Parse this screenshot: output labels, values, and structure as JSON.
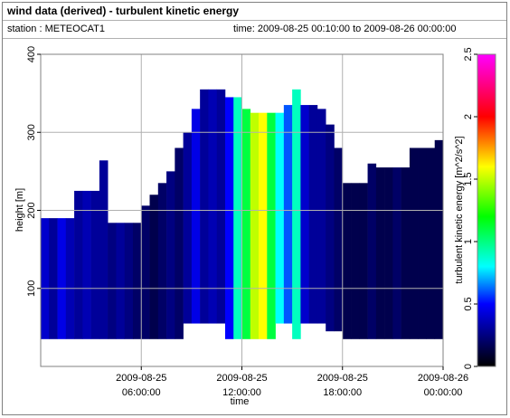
{
  "chart_data": {
    "type": "heatmap",
    "title": "wind data (derived) - turbulent kinetic energy",
    "station": "station : METEOCAT1",
    "time_range": "time: 2009-08-25 00:10:00 to 2009-08-26 00:00:00",
    "xlabel": "time",
    "ylabel": "height [m]",
    "colorbar_label": "turbulent kinetic energy [m^2/s^2]",
    "x": [
      0,
      0.5,
      1,
      1.5,
      2,
      2.5,
      3,
      3.5,
      4,
      4.5,
      5,
      5.5,
      6,
      6.5,
      7,
      7.5,
      8,
      8.5,
      9,
      9.5,
      10,
      10.5,
      11,
      11.5,
      12,
      12.5,
      13,
      13.5,
      14,
      14.5,
      15,
      15.5,
      16,
      16.5,
      17,
      17.5,
      18,
      18.5,
      19,
      19.5,
      20,
      20.5,
      21,
      21.5,
      22,
      22.5,
      23,
      23.5
    ],
    "bottoms": [
      35,
      35,
      35,
      35,
      35,
      35,
      35,
      35,
      35,
      35,
      35,
      35,
      35,
      35,
      35,
      35,
      35,
      55,
      55,
      55,
      55,
      55,
      35,
      35,
      35,
      35,
      35,
      35,
      55,
      55,
      35,
      55,
      55,
      55,
      45,
      45,
      35,
      35,
      35,
      35,
      35,
      35,
      35,
      35,
      35,
      35,
      35,
      35
    ],
    "tops": [
      190,
      190,
      190,
      190,
      225,
      225,
      225,
      264,
      184,
      184,
      184,
      184,
      206,
      220,
      235,
      250,
      280,
      300,
      330,
      355,
      355,
      355,
      345,
      345,
      330,
      325,
      325,
      325,
      325,
      335,
      355,
      335,
      335,
      330,
      310,
      280,
      235,
      235,
      235,
      260,
      255,
      255,
      255,
      255,
      280,
      280,
      280,
      290
    ],
    "values": [
      0.4,
      0.3,
      0.45,
      0.35,
      0.3,
      0.35,
      0.3,
      0.3,
      0.25,
      0.3,
      0.25,
      0.2,
      0.2,
      0.15,
      0.2,
      0.25,
      0.2,
      0.3,
      0.45,
      0.3,
      0.35,
      0.3,
      0.5,
      0.9,
      1.1,
      1.5,
      1.6,
      1.1,
      0.8,
      0.6,
      0.9,
      0.4,
      0.3,
      0.3,
      0.25,
      0.2,
      0.15,
      0.15,
      0.15,
      0.2,
      0.15,
      0.15,
      0.2,
      0.15,
      0.15,
      0.15,
      0.15,
      0.15
    ],
    "xlim": [
      0,
      24
    ],
    "xticks": [
      {
        "value": 6,
        "label": "2009-08-25 06:00:00"
      },
      {
        "value": 12,
        "label": "2009-08-25 12:00:00"
      },
      {
        "value": 18,
        "label": "2009-08-25 18:00:00"
      },
      {
        "value": 24,
        "label": "2009-08-26 00:00:00"
      }
    ],
    "ylim": [
      0,
      400
    ],
    "yticks": [
      100,
      200,
      300,
      400
    ],
    "clim": [
      0,
      2.5
    ],
    "cticks": [
      0,
      0.5,
      1,
      1.5,
      2,
      2.5
    ],
    "colorscale": [
      [
        0,
        "#000000"
      ],
      [
        0.25,
        "#000080"
      ],
      [
        0.5,
        "#0000ff"
      ],
      [
        0.8,
        "#00ffff"
      ],
      [
        1.2,
        "#00ff00"
      ],
      [
        1.6,
        "#ffff00"
      ],
      [
        2.0,
        "#ff0000"
      ],
      [
        2.5,
        "#ff00ff"
      ]
    ],
    "grid": true
  }
}
